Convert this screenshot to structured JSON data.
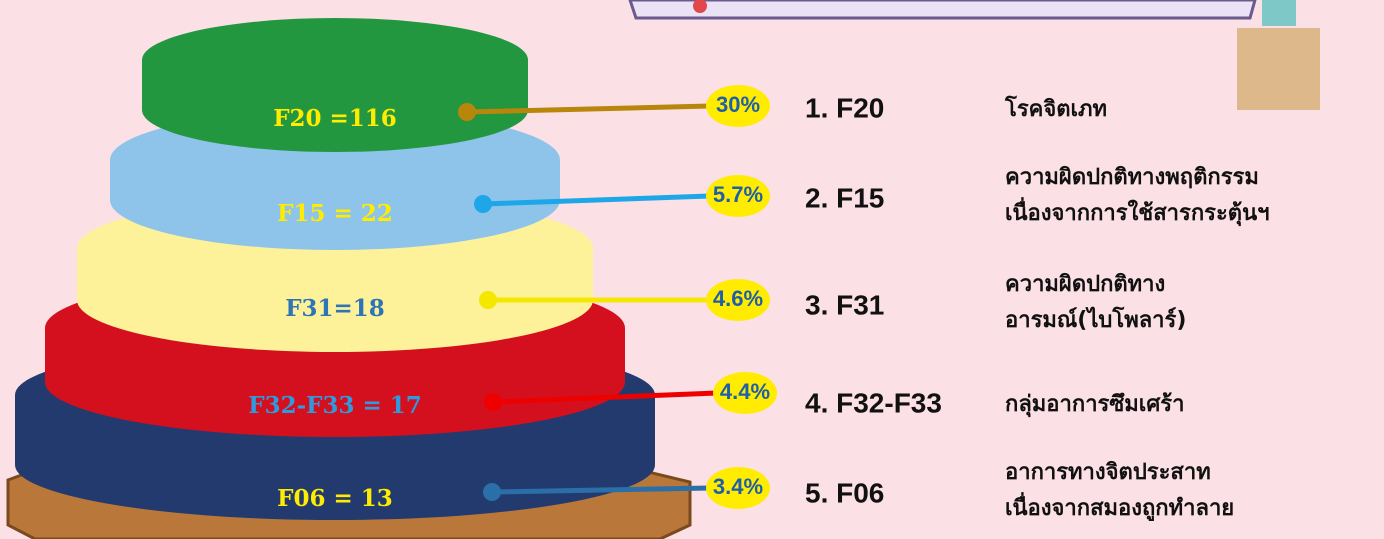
{
  "tiers": [
    {
      "label": "F20 =116",
      "percent": "30%",
      "rank": "1. F20",
      "description": [
        "โรคจิตเภท"
      ]
    },
    {
      "label": "F15 = 22",
      "percent": "5.7%",
      "rank": "2. F15",
      "description": [
        "ความผิดปกติทางพฤติกรรม",
        "เนื่องจากการใช้สารกระตุ้นฯ"
      ]
    },
    {
      "label": "F31=18",
      "percent": "4.6%",
      "rank": "3. F31",
      "description": [
        "ความผิดปกติทาง",
        "อารมณ์(ไบโพลาร์)"
      ]
    },
    {
      "label": "F32-F33 = 17",
      "percent": "4.4%",
      "rank": "4. F32-F33",
      "description": [
        "กลุ่มอาการซึมเศร้า"
      ]
    },
    {
      "label": "F06 = 13",
      "percent": "3.4%",
      "rank": "5. F06",
      "description": [
        "อาการทางจิตประสาท",
        "เนื่องจากสมองถูกทำลาย"
      ]
    }
  ]
}
